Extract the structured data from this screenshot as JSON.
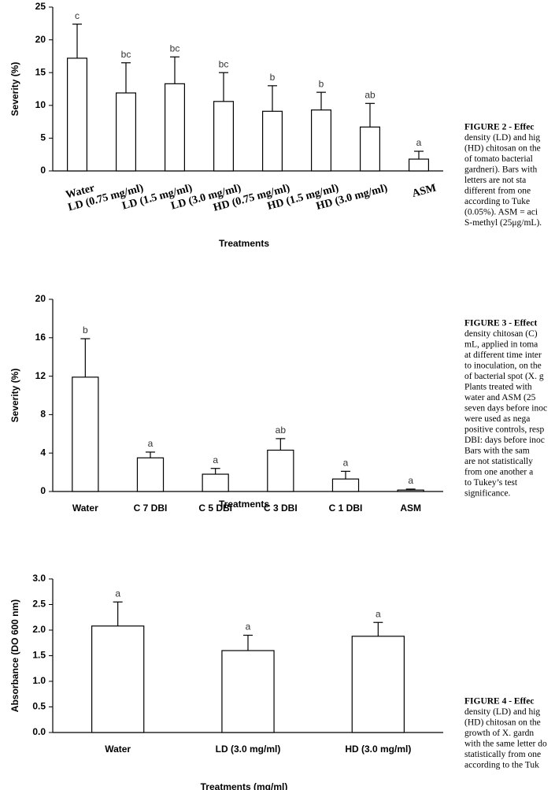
{
  "chart_data": [
    {
      "type": "bar",
      "x_label": "Treatments",
      "y_label": "Severity (%)",
      "categories": [
        "Water",
        "LD (0.75 mg/ml)",
        "LD (1.5 mg/ml)",
        "LD (3.0 mg/ml)",
        "HD (0.75 mg/ml)",
        "HD (1.5 mg/ml)",
        "HD (3.0 mg/ml)",
        "ASM"
      ],
      "values": [
        17.2,
        11.9,
        13.3,
        10.6,
        9.1,
        9.3,
        6.7,
        1.8
      ],
      "errors": [
        5.2,
        4.6,
        4.1,
        4.4,
        3.9,
        2.7,
        3.6,
        1.2
      ],
      "annotations": [
        "c",
        "bc",
        "bc",
        "bc",
        "b",
        "b",
        "ab",
        "a"
      ],
      "color": "#ffffff",
      "ylim": [
        0,
        25
      ],
      "yticks": [
        0,
        5,
        10,
        15,
        20,
        25
      ]
    },
    {
      "type": "bar",
      "x_label": "Treatments",
      "y_label": "Severity (%)",
      "categories": [
        "Water",
        "C 7 DBI",
        "C 5 DBI",
        "C 3 DBI",
        "C 1 DBI",
        "ASM"
      ],
      "values": [
        11.9,
        3.5,
        1.8,
        4.3,
        1.3,
        0.15
      ],
      "errors": [
        4.0,
        0.6,
        0.6,
        1.2,
        0.8,
        0.1
      ],
      "annotations": [
        "b",
        "a",
        "a",
        "ab",
        "a",
        "a"
      ],
      "color": "#ffffff",
      "ylim": [
        0,
        20
      ],
      "yticks": [
        0,
        4,
        8,
        12,
        16,
        20
      ]
    },
    {
      "type": "bar",
      "x_label": "Treatments (mg/ml)",
      "y_label": "Absorbance (DO 600 nm)",
      "categories": [
        "Water",
        "LD (3.0 mg/ml)",
        "HD (3.0 mg/ml)"
      ],
      "values": [
        2.08,
        1.6,
        1.88
      ],
      "errors": [
        0.47,
        0.3,
        0.27
      ],
      "annotations": [
        "a",
        "a",
        "a"
      ],
      "color": "#ffffff",
      "ylim": [
        0,
        3
      ],
      "yticks": [
        {
          "value": 0,
          "label": "0.0"
        },
        {
          "value": 0.5,
          "label": "0.5"
        },
        {
          "value": 1,
          "label": "1.0"
        },
        {
          "value": 1.5,
          "label": "1.5"
        },
        {
          "value": 2,
          "label": "2.0"
        },
        {
          "value": 2.5,
          "label": "2.5"
        },
        {
          "value": 3,
          "label": "3.0"
        }
      ]
    }
  ],
  "captions": [
    [
      "FIGURE 2 - Effec",
      "density (LD) and hig",
      "(HD) chitosan on the",
      "of tomato bacterial",
      "gardneri). Bars with",
      "letters are not sta",
      "different from one",
      "according to Tuke",
      "(0.05%). ASM = aci",
      "S-methyl (25μg/mL)."
    ],
    [
      "FIGURE 3 - Effect",
      "density chitosan (C)",
      "mL, applied in toma",
      "at different time inter",
      "to inoculation, on the",
      "of bacterial spot (X. g",
      "Plants treated with",
      "water and ASM (25",
      "seven days before inoc",
      "were used as nega",
      "positive controls, resp",
      "DBI: days before inoc",
      "Bars with the sam",
      "are not statistically",
      "from one another a",
      "to Tukey’s test",
      "significance."
    ],
    [
      "FIGURE 4 - Effec",
      "density (LD) and hig",
      "(HD) chitosan on the",
      "growth of X. gardn",
      "with the same letter do",
      "statistically from one",
      "according to the Tuk"
    ]
  ]
}
